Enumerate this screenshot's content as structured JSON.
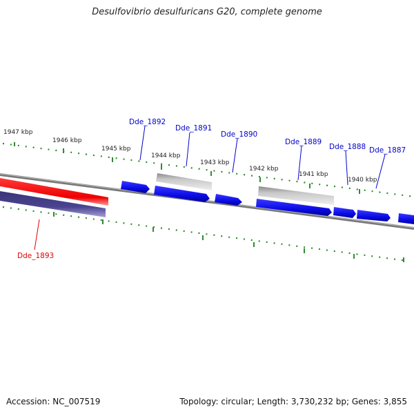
{
  "title": "Desulfovibrio desulfuricans G20, complete genome",
  "footer": {
    "accession": "Accession: NC_007519",
    "summary": "Topology: circular; Length: 3,730,232 bp; Genes: 3,855"
  },
  "colors": {
    "tick": "#2e8b2e",
    "backbone": "#7a7a7a",
    "forward_gene": "#0a0ae6",
    "gray_gene": "#b4b4b4",
    "red_gene": "#ee1111",
    "purple_gene": "#4a4490",
    "label_blue": "#0000cc",
    "label_red": "#dd0000"
  },
  "kbp_labels": [
    "1947 kbp",
    "1946 kbp",
    "1945 kbp",
    "1944 kbp",
    "1943 kbp",
    "1942 kbp",
    "1941 kbp",
    "1940 kbp"
  ],
  "gene_labels": [
    "Dde_1892",
    "Dde_1891",
    "Dde_1890",
    "Dde_1889",
    "Dde_1888",
    "Dde_1887",
    "Dde_1893"
  ]
}
